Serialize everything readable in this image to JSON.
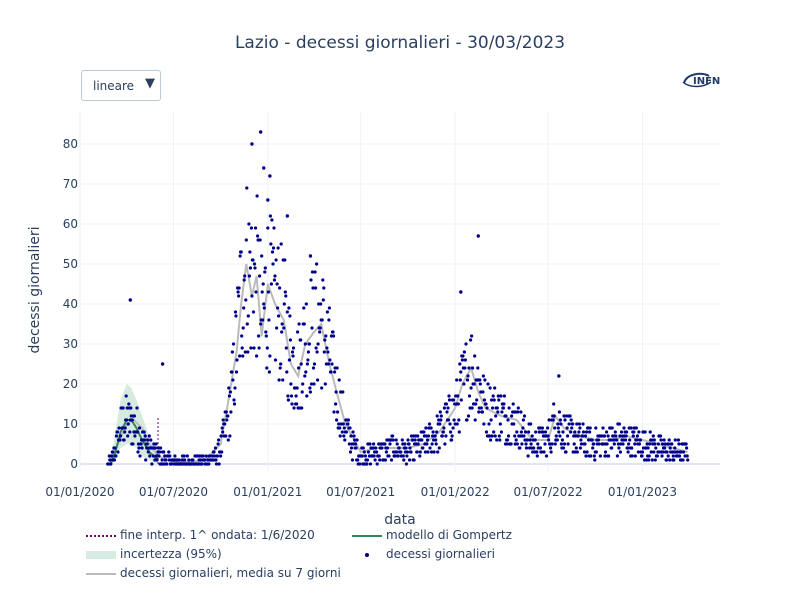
{
  "title": "Lazio - decessi giornalieri - 30/03/2023",
  "controls": {
    "scale_label": "lineare",
    "scale_arrow": "▼"
  },
  "logo_text": "INFN",
  "colors": {
    "points": "#00008b",
    "gompertz": "#2e8b57",
    "band": "#cfe8d8",
    "mean": "#bbbbbb",
    "fine": "#800080"
  },
  "legend": {
    "fine": "fine interp. 1^ ondata: 1/6/2020",
    "band": "incertezza (95%)",
    "mean": "decessi giornalieri, media su 7 giorni",
    "gompertz": "modello di Gompertz",
    "points": "decessi giornalieri"
  },
  "chart_data": {
    "type": "scatter",
    "title": "Lazio - decessi giornalieri - 30/03/2023",
    "xlabel": "data",
    "ylabel": "decessi giornalieri",
    "xlim": [
      "2020-01-01",
      "2023-06-01"
    ],
    "ylim": [
      -2,
      88
    ],
    "x_ticks": [
      "01/01/2020",
      "01/07/2020",
      "01/01/2021",
      "01/07/2021",
      "01/01/2022",
      "01/07/2022",
      "01/01/2023"
    ],
    "y_ticks": [
      0,
      10,
      20,
      30,
      40,
      50,
      60,
      70,
      80
    ],
    "grid": true,
    "legend_position": "bottom",
    "series": [
      {
        "name": "decessi giornalieri, media su 7 giorni",
        "type": "line",
        "x": [
          "2020-03-01",
          "2020-03-15",
          "2020-04-01",
          "2020-04-15",
          "2020-05-01",
          "2020-05-15",
          "2020-06-01",
          "2020-07-01",
          "2020-08-01",
          "2020-09-01",
          "2020-10-01",
          "2020-10-15",
          "2020-11-01",
          "2020-11-10",
          "2020-11-20",
          "2020-12-01",
          "2020-12-10",
          "2020-12-20",
          "2021-01-01",
          "2021-01-15",
          "2021-02-01",
          "2021-02-15",
          "2021-03-01",
          "2021-03-15",
          "2021-04-01",
          "2021-04-15",
          "2021-05-01",
          "2021-05-15",
          "2021-06-01",
          "2021-07-01",
          "2021-08-01",
          "2021-09-01",
          "2021-10-01",
          "2021-11-01",
          "2021-12-01",
          "2022-01-01",
          "2022-01-15",
          "2022-02-01",
          "2022-02-15",
          "2022-03-01",
          "2022-04-01",
          "2022-05-01",
          "2022-06-01",
          "2022-07-01",
          "2022-07-15",
          "2022-08-01",
          "2022-09-01",
          "2022-10-01",
          "2022-11-01",
          "2022-12-01",
          "2023-01-01",
          "2023-02-01",
          "2023-03-01",
          "2023-03-30"
        ],
        "y": [
          1,
          5,
          10,
          11,
          9,
          5,
          2,
          0.5,
          0.5,
          1,
          5,
          15,
          28,
          40,
          50,
          42,
          47,
          32,
          45,
          40,
          36,
          25,
          22,
          30,
          33,
          35,
          25,
          18,
          10,
          3,
          4,
          4,
          4,
          5,
          8,
          14,
          20,
          24,
          18,
          14,
          12,
          11,
          6,
          6,
          12,
          9,
          7,
          6,
          6,
          7,
          6,
          5,
          4,
          3
        ]
      },
      {
        "name": "modello di Gompertz",
        "type": "line",
        "x": [
          "2020-03-01",
          "2020-03-10",
          "2020-03-20",
          "2020-04-01",
          "2020-04-10",
          "2020-04-20",
          "2020-05-01",
          "2020-05-15",
          "2020-06-01"
        ],
        "y": [
          0,
          3,
          8,
          11,
          11,
          9,
          6,
          3,
          1
        ]
      },
      {
        "name": "incertezza (95%)",
        "type": "area",
        "x": [
          "2020-03-01",
          "2020-03-10",
          "2020-03-20",
          "2020-04-01",
          "2020-04-10",
          "2020-04-20",
          "2020-05-01",
          "2020-05-15",
          "2020-06-01"
        ],
        "y_low": [
          0,
          1,
          4,
          5,
          5,
          4,
          2,
          1,
          0
        ],
        "y_high": [
          1,
          8,
          16,
          20,
          19,
          16,
          12,
          7,
          3
        ]
      },
      {
        "name": "fine interp. 1^ ondata: 1/6/2020",
        "type": "line",
        "x": [
          "2020-06-01"
        ],
        "y": [
          0
        ]
      },
      {
        "name": "decessi giornalieri",
        "type": "scatter",
        "highlights": [
          {
            "x": "2020-04-08",
            "y": 41
          },
          {
            "x": "2020-06-10",
            "y": 25
          },
          {
            "x": "2020-12-01",
            "y": 80
          },
          {
            "x": "2020-12-18",
            "y": 83
          },
          {
            "x": "2020-12-24",
            "y": 74
          },
          {
            "x": "2021-01-05",
            "y": 72
          },
          {
            "x": "2021-01-01",
            "y": 66
          },
          {
            "x": "2021-02-08",
            "y": 62
          },
          {
            "x": "2021-03-25",
            "y": 52
          },
          {
            "x": "2022-01-12",
            "y": 43
          },
          {
            "x": "2022-02-15",
            "y": 57
          },
          {
            "x": "2022-07-22",
            "y": 22
          }
        ]
      }
    ],
    "trend_points": [
      [
        "2020-02-20",
        0
      ],
      [
        "2020-03-01",
        0
      ],
      [
        "2020-03-08",
        3
      ],
      [
        "2020-03-15",
        6
      ],
      [
        "2020-03-22",
        10
      ],
      [
        "2020-04-01",
        11
      ],
      [
        "2020-04-10",
        10
      ],
      [
        "2020-04-20",
        9
      ],
      [
        "2020-05-01",
        6
      ],
      [
        "2020-05-15",
        4
      ],
      [
        "2020-06-01",
        2
      ],
      [
        "2020-06-15",
        1
      ],
      [
        "2020-07-01",
        0.5
      ],
      [
        "2020-08-01",
        0.3
      ],
      [
        "2020-09-01",
        0.7
      ],
      [
        "2020-09-20",
        1.5
      ],
      [
        "2020-10-01",
        4
      ],
      [
        "2020-10-15",
        11
      ],
      [
        "2020-10-25",
        20
      ],
      [
        "2020-11-01",
        30
      ],
      [
        "2020-11-10",
        42
      ],
      [
        "2020-11-20",
        50
      ],
      [
        "2020-12-01",
        45
      ],
      [
        "2020-12-10",
        47
      ],
      [
        "2020-12-20",
        36
      ],
      [
        "2021-01-01",
        44
      ],
      [
        "2021-01-15",
        40
      ],
      [
        "2021-02-01",
        36
      ],
      [
        "2021-02-15",
        26
      ],
      [
        "2021-03-01",
        24
      ],
      [
        "2021-03-15",
        31
      ],
      [
        "2021-04-01",
        34
      ],
      [
        "2021-04-15",
        35
      ],
      [
        "2021-05-01",
        27
      ],
      [
        "2021-05-15",
        18
      ],
      [
        "2021-06-01",
        9
      ],
      [
        "2021-06-15",
        5
      ],
      [
        "2021-07-01",
        2
      ],
      [
        "2021-08-01",
        3
      ],
      [
        "2021-09-01",
        4
      ],
      [
        "2021-10-01",
        3
      ],
      [
        "2021-11-01",
        5
      ],
      [
        "2021-12-01",
        8
      ],
      [
        "2022-01-01",
        13
      ],
      [
        "2022-01-15",
        19
      ],
      [
        "2022-02-01",
        24
      ],
      [
        "2022-02-15",
        20
      ],
      [
        "2022-03-01",
        14
      ],
      [
        "2022-04-01",
        12
      ],
      [
        "2022-05-01",
        10
      ],
      [
        "2022-06-01",
        5
      ],
      [
        "2022-07-01",
        6
      ],
      [
        "2022-07-15",
        11
      ],
      [
        "2022-08-01",
        8
      ],
      [
        "2022-09-01",
        6
      ],
      [
        "2022-10-01",
        5
      ],
      [
        "2022-11-01",
        6
      ],
      [
        "2022-12-01",
        6
      ],
      [
        "2023-01-01",
        5
      ],
      [
        "2023-02-01",
        4
      ],
      [
        "2023-03-01",
        3
      ],
      [
        "2023-03-30",
        3
      ]
    ]
  }
}
